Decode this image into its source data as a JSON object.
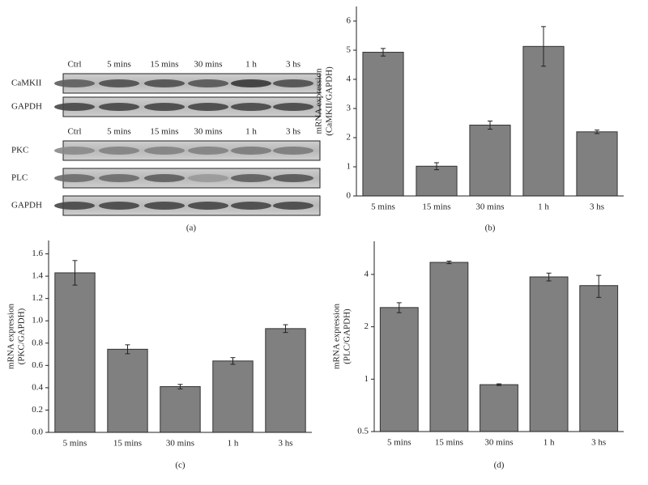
{
  "blot": {
    "panel_label": "(a)",
    "columns_top": [
      "Ctrl",
      "5 mins",
      "15 mins",
      "30 mins",
      "1 h",
      "3 hs"
    ],
    "rows_top": [
      "CaMKII",
      "GAPDH"
    ],
    "columns_bottom": [
      "Ctrl",
      "5 mins",
      "15 mins",
      "30 mins",
      "1 h",
      "3 hs"
    ],
    "rows_bottom": [
      "PKC",
      "PLC",
      "GAPDH"
    ]
  },
  "chart_data": [
    {
      "type": "bar",
      "panel_label": "(b)",
      "ylabel": [
        "mRNA expression",
        "(CaMKII/GAPDH)"
      ],
      "categories": [
        "5 mins",
        "15 mins",
        "30 mins",
        "1 h",
        "3 hs"
      ],
      "values": [
        4.93,
        1.02,
        2.43,
        5.13,
        2.2
      ],
      "errors": [
        0.13,
        0.12,
        0.14,
        0.68,
        0.06
      ],
      "color": "#808080",
      "ylim": [
        0,
        6.5
      ],
      "yticks": [
        0,
        1,
        2,
        3,
        4,
        5,
        6
      ],
      "log": false
    },
    {
      "type": "bar",
      "panel_label": "(c)",
      "ylabel": [
        "mRNA expression",
        "(PKC/GAPDH)"
      ],
      "categories": [
        "5 mins",
        "15 mins",
        "30 mins",
        "1 h",
        "3 hs"
      ],
      "values": [
        1.43,
        0.745,
        0.41,
        0.64,
        0.93
      ],
      "errors": [
        0.11,
        0.04,
        0.02,
        0.03,
        0.035
      ],
      "color": "#808080",
      "ylim": [
        0,
        1.72
      ],
      "yticks": [
        {
          "value": 0,
          "label": "0.0"
        },
        0.2,
        0.4,
        0.6,
        0.8,
        {
          "value": 1,
          "label": "1.0"
        },
        1.2,
        1.4,
        1.6
      ],
      "log": false
    },
    {
      "type": "bar",
      "panel_label": "(d)",
      "ylabel": [
        "mRNA expression",
        "(PLC/GAPDH)"
      ],
      "categories": [
        "5 mins",
        "15 mins",
        "30 mins",
        "1 h",
        "3 hs"
      ],
      "values": [
        2.58,
        4.69,
        0.93,
        3.87,
        3.45
      ],
      "errors": [
        0.17,
        0.08,
        0.01,
        0.2,
        0.5
      ],
      "color": "#808080",
      "ylim": [
        0.5,
        6.2
      ],
      "yticks": [
        0.5,
        1,
        2,
        4
      ],
      "log": true
    }
  ]
}
